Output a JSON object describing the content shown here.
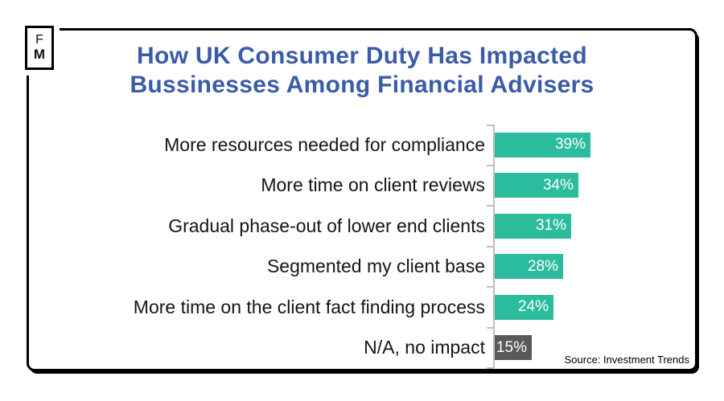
{
  "logo": {
    "letters": [
      "F",
      "M"
    ]
  },
  "header": {
    "title_line1": "How UK Consumer Duty Has Impacted",
    "title_line2": "Bussinesses Among Financial Advisers",
    "title_color": "#3b5ba8"
  },
  "chart_data": {
    "type": "bar",
    "orientation": "horizontal",
    "title": "How UK Consumer Duty Has Impacted Bussinesses Among Financial Advisers",
    "categories": [
      "More resources needed for compliance",
      "More time on client reviews",
      "Gradual phase-out of lower end clients",
      "Segmented my client base",
      "More time on the client fact finding process",
      "N/A, no impact"
    ],
    "values": [
      39,
      34,
      31,
      28,
      24,
      15
    ],
    "value_labels": [
      "39%",
      "34%",
      "31%",
      "28%",
      "24%",
      "15%"
    ],
    "bar_colors": [
      "#2bbc9d",
      "#2bbc9d",
      "#2bbc9d",
      "#2bbc9d",
      "#2bbc9d",
      "#58595b"
    ],
    "value_label_color": "#ffffff",
    "axis_color": "#bfbfbf",
    "xlim": [
      0,
      40
    ],
    "grid": false,
    "legend": false,
    "value_labels_position": "inside-end"
  },
  "footer": {
    "source": "Source: Investment Trends"
  }
}
